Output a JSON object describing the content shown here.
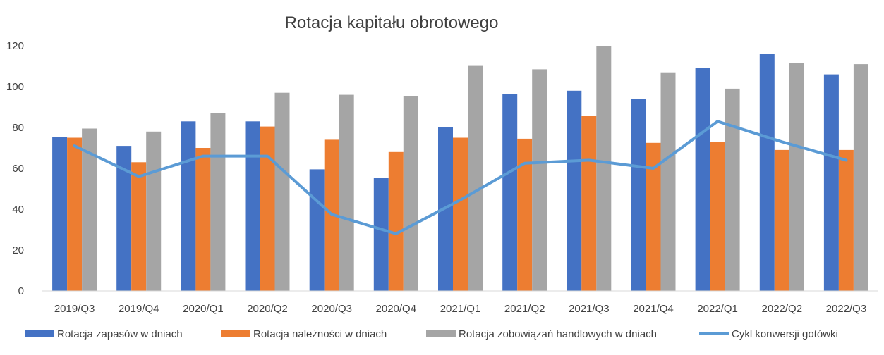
{
  "chart_data": {
    "type": "bar",
    "title": "Rotacja kapitału obrotowego",
    "xlabel": "",
    "ylabel": "",
    "ylim": [
      0,
      120
    ],
    "yticks": [
      0,
      20,
      40,
      60,
      80,
      100,
      120
    ],
    "grid": false,
    "legend_position": "bottom",
    "categories": [
      "2019/Q3",
      "2019/Q4",
      "2020/Q1",
      "2020/Q2",
      "2020/Q3",
      "2020/Q4",
      "2021/Q1",
      "2021/Q2",
      "2021/Q3",
      "2021/Q4",
      "2022/Q1",
      "2022/Q2",
      "2022/Q3"
    ],
    "series": [
      {
        "name": "Rotacja zapasów w dniach",
        "kind": "bar",
        "color": "#4472C4",
        "values": [
          75.5,
          71,
          83,
          83,
          59.5,
          55.5,
          80,
          96.5,
          98,
          94,
          109,
          116,
          106
        ]
      },
      {
        "name": "Rotacja należności w dniach",
        "kind": "bar",
        "color": "#ED7D31",
        "values": [
          75,
          63,
          70,
          80.5,
          74,
          68,
          75,
          74.5,
          85.5,
          72.5,
          73,
          69,
          69
        ]
      },
      {
        "name": "Rotacja zobowiązań handlowych w dniach",
        "kind": "bar",
        "color": "#A5A5A5",
        "values": [
          79.5,
          78,
          87,
          97,
          96,
          95.5,
          110.5,
          108.5,
          120,
          107,
          99,
          111.5,
          111
        ]
      },
      {
        "name": "Cykl konwersji gotówki",
        "kind": "line",
        "color": "#5B9BD5",
        "values": [
          71,
          56,
          66,
          66,
          37.5,
          28,
          44.5,
          62.5,
          64,
          60,
          83,
          73,
          64
        ]
      }
    ]
  }
}
